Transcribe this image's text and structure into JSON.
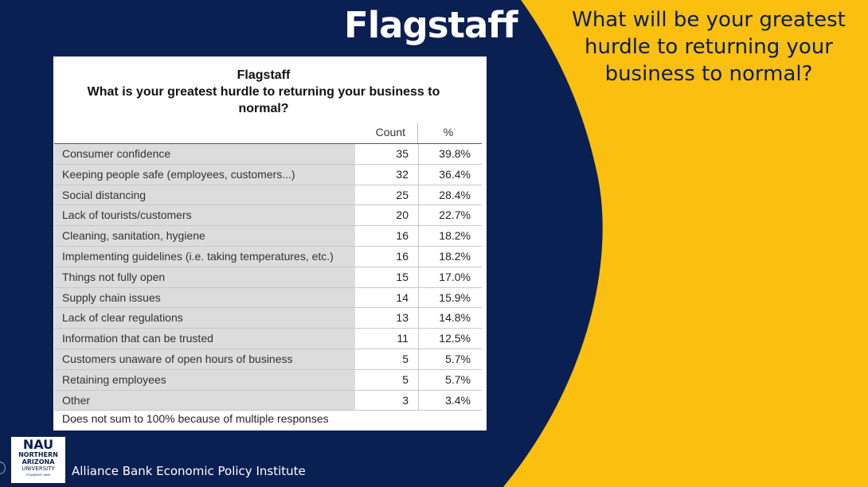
{
  "slide": {
    "title": "Flagstaff",
    "question": "What will be your greatest hurdle to returning your business to normal?",
    "colors": {
      "navy": "#0a1f52",
      "gold": "#fbbf0f"
    }
  },
  "table": {
    "title_lines": [
      "Flagstaff",
      "What is your greatest hurdle to returning your business to",
      "normal?"
    ],
    "columns": {
      "count": "Count",
      "pct": "%"
    },
    "rows": [
      {
        "label": "Consumer confidence",
        "count": "35",
        "pct": "39.8%"
      },
      {
        "label": "Keeping people safe (employees, customers...)",
        "count": "32",
        "pct": "36.4%"
      },
      {
        "label": "Social distancing",
        "count": "25",
        "pct": "28.4%"
      },
      {
        "label": "Lack of tourists/customers",
        "count": "20",
        "pct": "22.7%"
      },
      {
        "label": "Cleaning, sanitation, hygiene",
        "count": "16",
        "pct": "18.2%"
      },
      {
        "label": "Implementing guidelines (i.e. taking temperatures, etc.)",
        "count": "16",
        "pct": "18.2%"
      },
      {
        "label": "Things not fully open",
        "count": "15",
        "pct": "17.0%"
      },
      {
        "label": "Supply chain issues",
        "count": "14",
        "pct": "15.9%"
      },
      {
        "label": "Lack of clear regulations",
        "count": "13",
        "pct": "14.8%"
      },
      {
        "label": "Information that can be trusted",
        "count": "11",
        "pct": "12.5%"
      },
      {
        "label": "Customers unaware of open hours of business",
        "count": "5",
        "pct": "5.7%"
      },
      {
        "label": "Retaining employees",
        "count": "5",
        "pct": "5.7%"
      },
      {
        "label": "Other",
        "count": "3",
        "pct": "3.4%"
      }
    ],
    "footnote": "Does not sum to 100% because of multiple responses"
  },
  "footer": {
    "logo": {
      "mark": "NAU",
      "line1": "NORTHERN",
      "line2": "ARIZONA",
      "line3": "UNIVERSITY",
      "line4": "FOUNDED 1899"
    },
    "institute": "Alliance Bank Economic Policy Institute"
  }
}
